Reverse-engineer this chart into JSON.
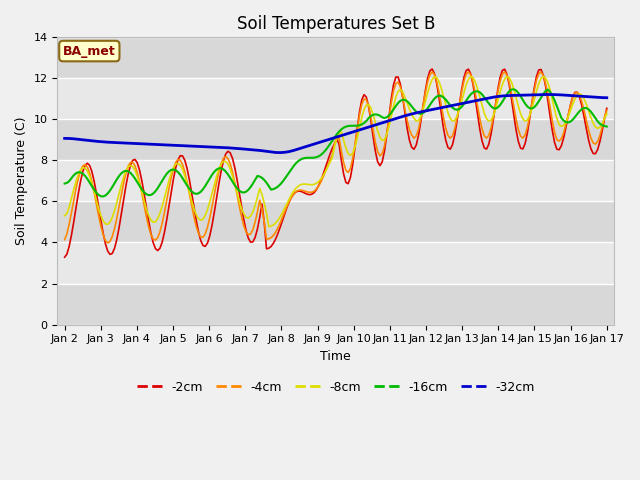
{
  "title": "Soil Temperatures Set B",
  "xlabel": "Time",
  "ylabel": "Soil Temperature (C)",
  "annotation": "BA_met",
  "ylim": [
    0,
    14
  ],
  "yticks": [
    0,
    2,
    4,
    6,
    8,
    10,
    12,
    14
  ],
  "xtick_labels": [
    "Jan 2",
    "Jan 3",
    "Jan 4",
    "Jan 5",
    "Jan 6",
    "Jan 7",
    "Jan 8",
    "Jan 9",
    "Jan 10",
    "Jan 11",
    "Jan 12",
    "Jan 13",
    "Jan 14",
    "Jan 15",
    "Jan 16",
    "Jan 17"
  ],
  "colors": {
    "-2cm": "#dd0000",
    "-4cm": "#ff8800",
    "-8cm": "#dddd00",
    "-16cm": "#00bb00",
    "-32cm": "#0000cc"
  },
  "legend_labels": [
    "-2cm",
    "-4cm",
    "-8cm",
    "-16cm",
    "-32cm"
  ],
  "plot_bg_color": "#e8e8e8",
  "fig_bg_color": "#f0f0f0",
  "grid_color": "#ffffff",
  "title_fontsize": 12,
  "label_fontsize": 9,
  "tick_fontsize": 8
}
